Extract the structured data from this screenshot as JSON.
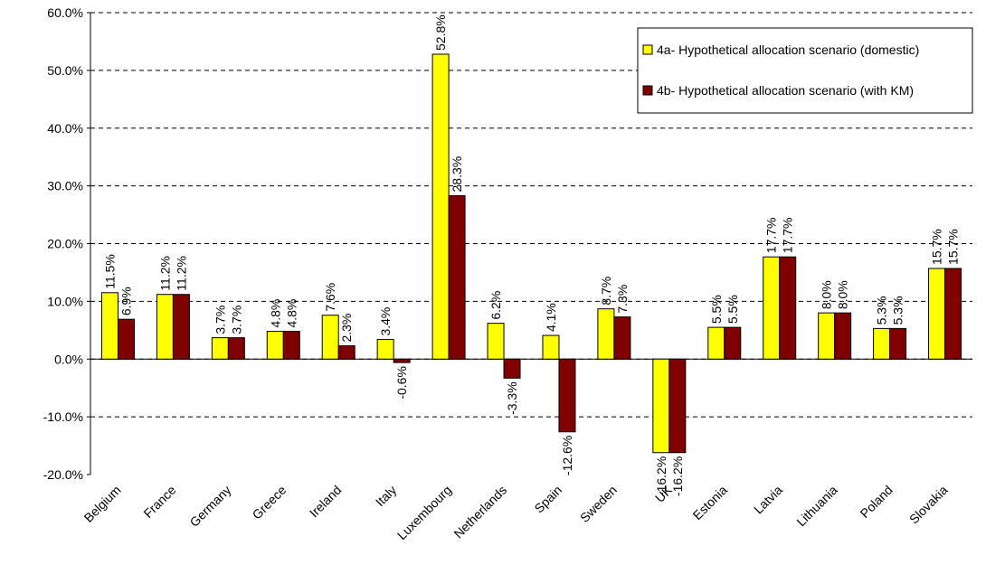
{
  "chart_data": {
    "type": "bar",
    "categories": [
      "Belgium",
      "France",
      "Germany",
      "Greece",
      "Ireland",
      "Italy",
      "Luxembourg",
      "Netherlands",
      "Spain",
      "Sweden",
      "UK",
      "Estonia",
      "Latvia",
      "Lithuania",
      "Poland",
      "Slovakia"
    ],
    "series": [
      {
        "name": "4a- Hypothetical allocation scenario (domestic)",
        "color": "#ffff00",
        "values": [
          11.5,
          11.2,
          3.7,
          4.8,
          7.6,
          3.4,
          52.8,
          6.2,
          4.1,
          8.7,
          -16.2,
          5.5,
          17.7,
          8.0,
          5.3,
          15.7
        ],
        "value_labels": [
          "11.5%",
          "11.2%",
          "3.7%",
          "4.8%",
          "7.6%",
          "3.4%",
          "52.8%",
          "6.2%",
          "4.1%",
          "8.7%",
          "-16.2%",
          "5.5%",
          "17.7%",
          "8.0%",
          "5.3%",
          "15.7%"
        ]
      },
      {
        "name": "4b- Hypothetical allocation scenario (with KM)",
        "color": "#800000",
        "values": [
          6.9,
          11.2,
          3.7,
          4.8,
          2.3,
          -0.6,
          28.3,
          -3.3,
          -12.6,
          7.3,
          -16.2,
          5.5,
          17.7,
          8.0,
          5.3,
          15.7
        ],
        "value_labels": [
          "6.9%",
          "11.2%",
          "3.7%",
          "4.8%",
          "2.3%",
          "-0.6%",
          "28.3%",
          "-3.3%",
          "-12.6%",
          "7.3%",
          "-16.2%",
          "5.5%",
          "17.7%",
          "8.0%",
          "5.3%",
          "15.7%"
        ]
      }
    ],
    "ylim": [
      -20,
      60
    ],
    "yticks": [
      {
        "value": -20,
        "label": "-20.0%"
      },
      {
        "value": -10,
        "label": "-10.0%"
      },
      {
        "value": 0,
        "label": "0.0%"
      },
      {
        "value": 10,
        "label": "10.0%"
      },
      {
        "value": 20,
        "label": "20.0%"
      },
      {
        "value": 30,
        "label": "30.0%"
      },
      {
        "value": 40,
        "label": "40.0%"
      },
      {
        "value": 50,
        "label": "50.0%"
      },
      {
        "value": 60,
        "label": "60.0%"
      }
    ],
    "grid": true,
    "legend": "upper right"
  }
}
